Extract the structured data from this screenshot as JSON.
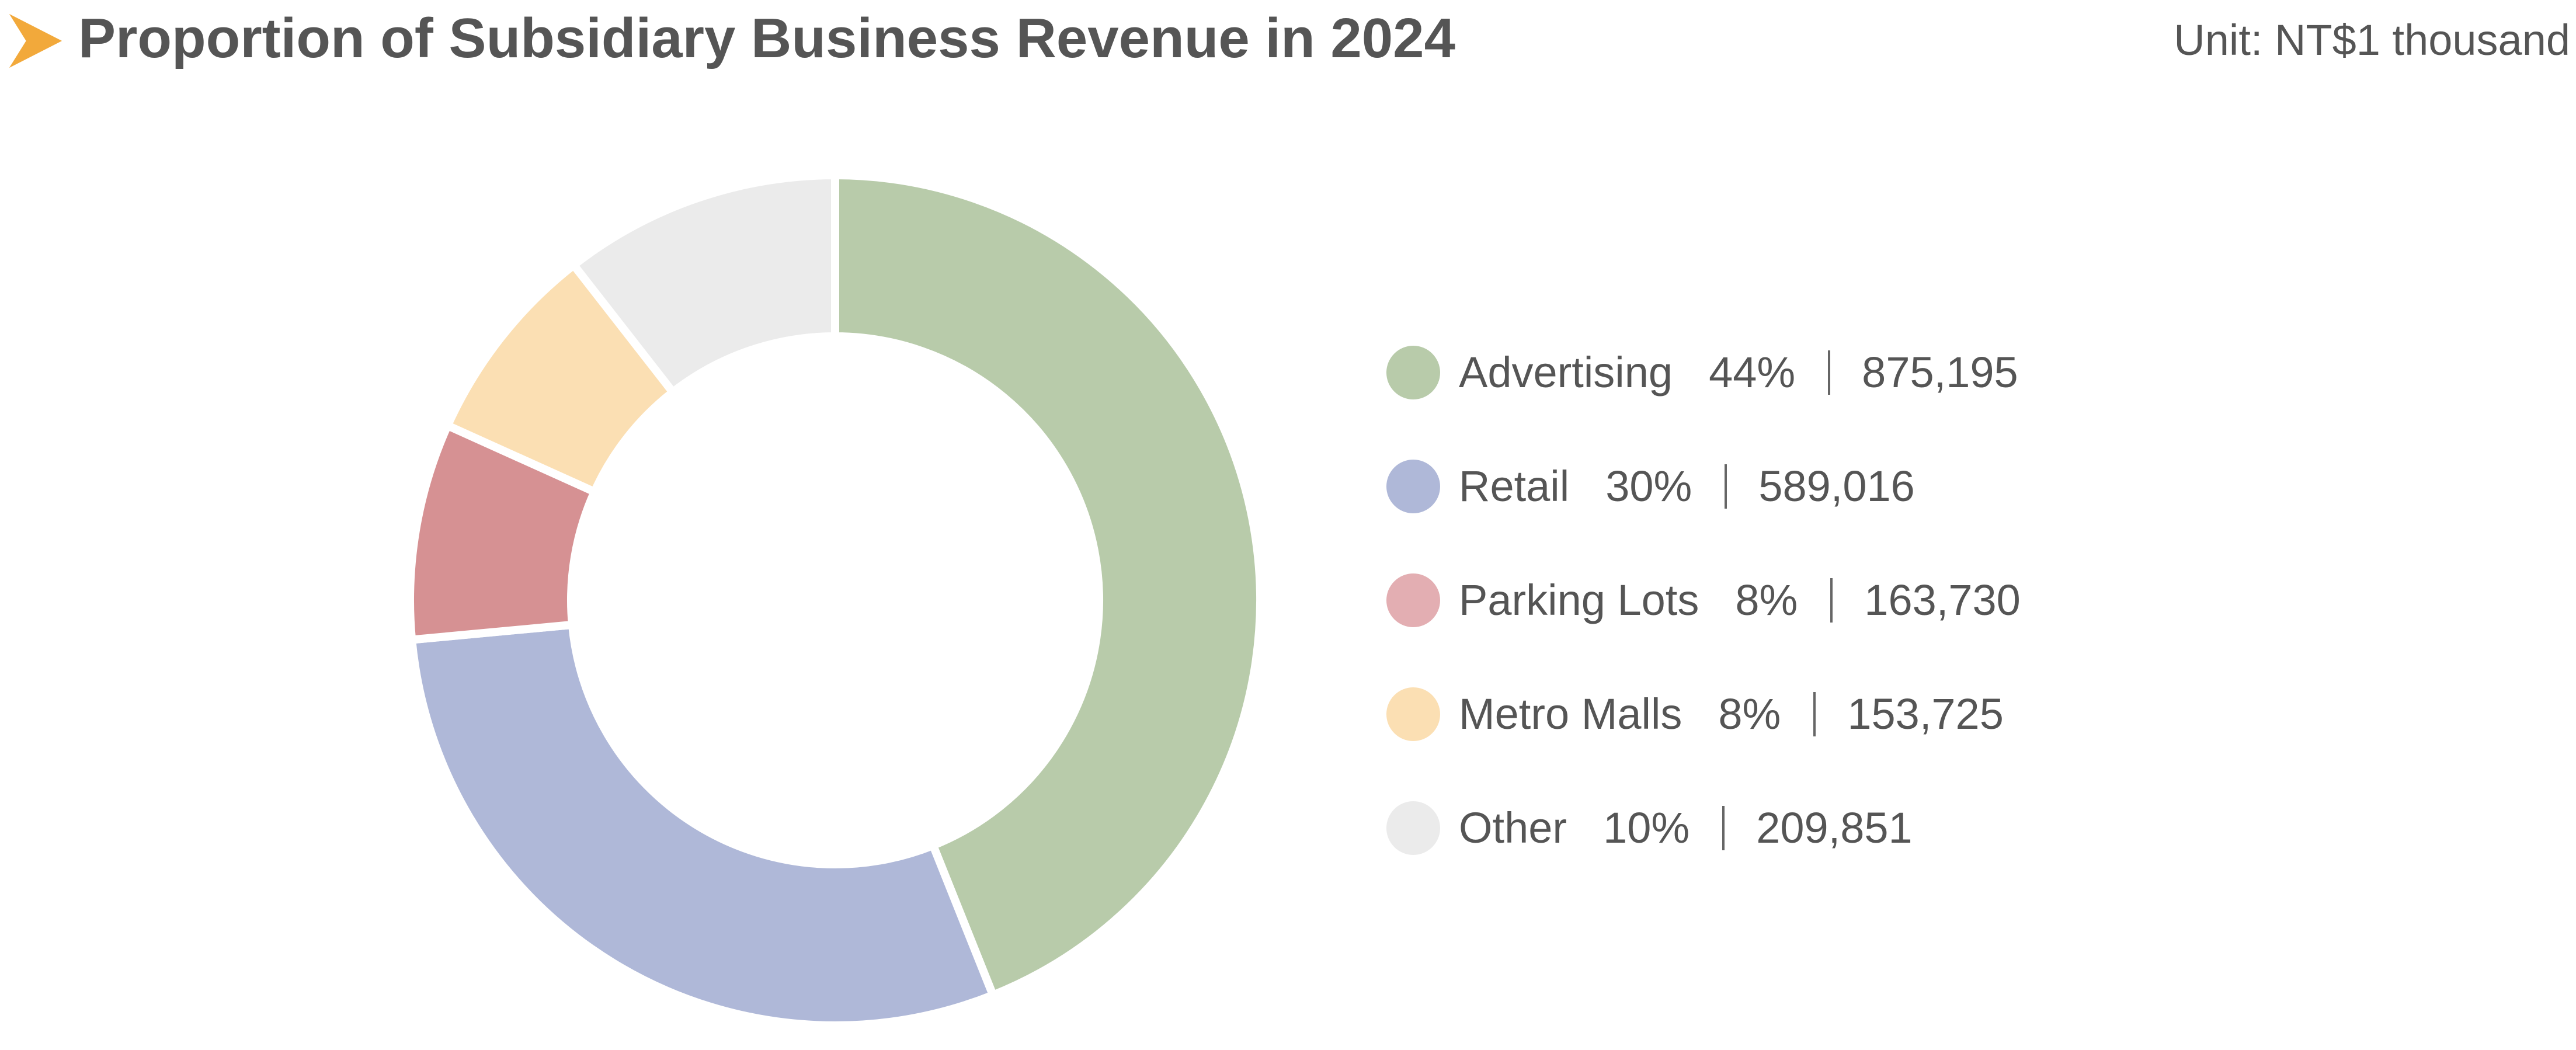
{
  "header": {
    "title": "Proportion of Subsidiary Business Revenue in 2024",
    "unit": "Unit: NT$1 thousand",
    "marker_color": "#F2A93B"
  },
  "chart_data": {
    "type": "pie",
    "variant": "donut",
    "title": "Proportion of Subsidiary Business Revenue in 2024",
    "unit": "Unit: NT$1 thousand",
    "legend_position": "right",
    "categories": [
      "Advertising",
      "Retail",
      "Parking Lots",
      "Metro Malls",
      "Other"
    ],
    "values": [
      875195,
      589016,
      163730,
      153725,
      209851
    ],
    "percent_labels": [
      "44%",
      "30%",
      "8%",
      "8%",
      "10%"
    ],
    "value_labels": [
      "875,195",
      "589,016",
      "163,730",
      "153,725",
      "209,851"
    ],
    "colors": [
      "#B8CBAA",
      "#AFB8D8",
      "#D69193",
      "#FBDFB3",
      "#EBEBEB"
    ],
    "legend_dot_colors": [
      "#B8CBAA",
      "#AFB8D8",
      "#E3AEB2",
      "#FBDFB3",
      "#EBEBEB"
    ]
  }
}
